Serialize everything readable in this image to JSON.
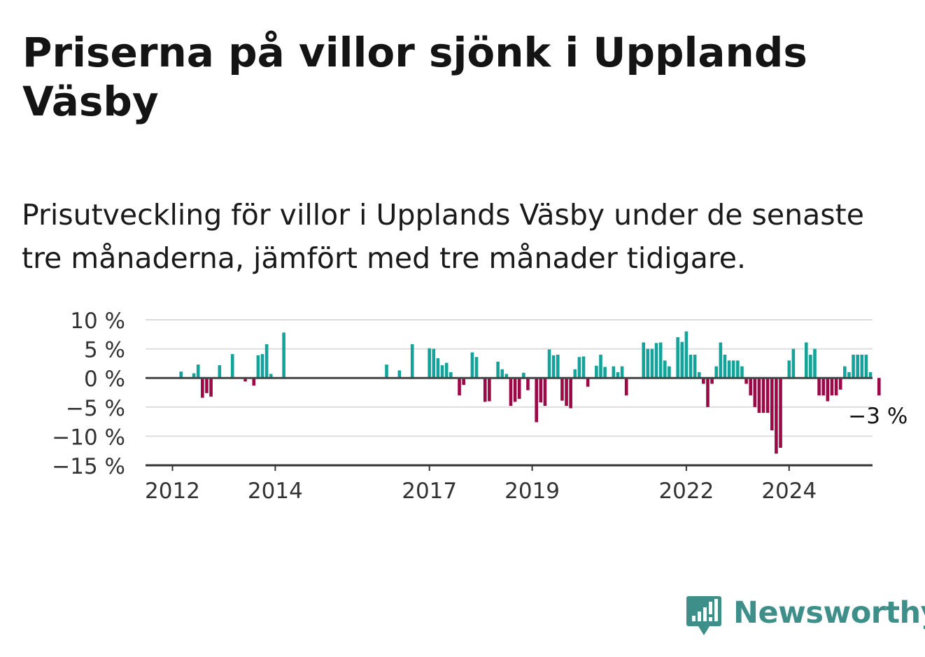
{
  "header": {
    "title": "Priserna på villor sjönk i Upplands Väsby",
    "subtitle": "Prisutveckling för villor i Upplands Väsby under de senaste tre månaderna, jämfört med tre månader tidigare."
  },
  "brand": {
    "name": "Newsworthy",
    "icon": "newsworthy-logo-icon",
    "color": "#3e8f8a"
  },
  "colors": {
    "positive": "#13a39b",
    "negative": "#9b0a47",
    "grid": "#dddddd",
    "zero_line": "#444444"
  },
  "chart_data": {
    "type": "bar",
    "title": "",
    "xlabel": "",
    "ylabel": "",
    "ylim": [
      -15,
      10
    ],
    "y_ticks": [
      {
        "value": 10,
        "label": "10 %"
      },
      {
        "value": 5,
        "label": "5 %"
      },
      {
        "value": 0,
        "label": "0 %"
      },
      {
        "value": -5,
        "label": "−5 %"
      },
      {
        "value": -10,
        "label": "−10 %"
      },
      {
        "value": -15,
        "label": "−15 %"
      }
    ],
    "x_ticks": [
      "2012",
      "2014",
      "2017",
      "2019",
      "2022",
      "2024"
    ],
    "grid": true,
    "last_value_label": "−3 %",
    "series": [
      {
        "values": [
          null,
          null,
          1.1,
          null,
          null,
          0.8,
          2.3,
          -3.4,
          -2.6,
          -3.2,
          null,
          2.2,
          null,
          null,
          4.1,
          null,
          null,
          -0.6,
          null,
          -1.3,
          3.9,
          4.1,
          5.8,
          0.7,
          null,
          null,
          7.8,
          null,
          null,
          null,
          null,
          null,
          null,
          null,
          null,
          null,
          null,
          null,
          null,
          null,
          null,
          null,
          null,
          null,
          null,
          null,
          null,
          null,
          null,
          null,
          2.3,
          null,
          null,
          1.3,
          null,
          null,
          5.8,
          null,
          null,
          null,
          5.1,
          5.0,
          3.4,
          2.2,
          2.6,
          1.0,
          null,
          -3.0,
          -1.2,
          null,
          4.4,
          3.6,
          null,
          -4.1,
          -4.0,
          null,
          2.8,
          1.5,
          0.7,
          -4.8,
          -4.1,
          -3.6,
          0.9,
          -2.1,
          null,
          -7.6,
          -4.2,
          -4.8,
          4.9,
          3.9,
          4.0,
          -3.9,
          -4.8,
          -5.2,
          1.5,
          3.6,
          3.7,
          -1.5,
          null,
          2.1,
          4.0,
          1.9,
          null,
          2.0,
          1.0,
          2.0,
          -3.0,
          null,
          null,
          null,
          6.1,
          5.0,
          5.0,
          6.0,
          6.1,
          3.0,
          2.0,
          null,
          7.0,
          6.2,
          8.0,
          4.0,
          4.0,
          1.0,
          -1.0,
          -5.0,
          -1.0,
          2.0,
          6.1,
          4.0,
          3.0,
          3.0,
          3.0,
          2.0,
          -1.0,
          -3.0,
          -5.0,
          -6.0,
          -6.0,
          -6.0,
          -9.0,
          -13.0,
          -12.0,
          null,
          3.0,
          5.0,
          null,
          null,
          6.1,
          4.0,
          5.0,
          -3.0,
          -3.0,
          -4.0,
          -3.0,
          -3.0,
          -2.0,
          2.0,
          1.0,
          4.0,
          4.0,
          4.0,
          4.0,
          1.0,
          null,
          -3.0
        ]
      }
    ]
  }
}
